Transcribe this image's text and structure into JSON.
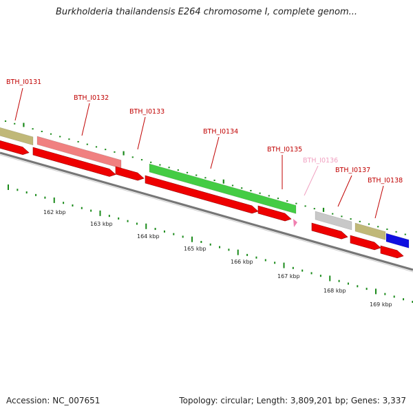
{
  "title": "Burkholderia thailandensis E264 chromosome I, complete genom...",
  "footer": {
    "accession": "Accession: NC_007651",
    "summary": "Topology: circular; Length: 3,809,201 bp; Genes: 3,337"
  },
  "genes": [
    {
      "label": "BTH_I0131",
      "color": "#c00000"
    },
    {
      "label": "BTH_I0132",
      "color": "#c00000"
    },
    {
      "label": "BTH_I0133",
      "color": "#c00000"
    },
    {
      "label": "BTH_I0134",
      "color": "#c00000"
    },
    {
      "label": "BTH_I0135",
      "color": "#c00000"
    },
    {
      "label": "BTH_I0136",
      "color": "#f0a0c0"
    },
    {
      "label": "BTH_I0137",
      "color": "#c00000"
    },
    {
      "label": "BTH_I0138",
      "color": "#c00000"
    }
  ],
  "kbp_labels": [
    "162 kbp",
    "163 kbp",
    "164 kbp",
    "165 kbp",
    "166 kbp",
    "167 kbp",
    "168 kbp",
    "169 kbp"
  ],
  "colors": {
    "backbone": "#777777",
    "cds": "#ee0000",
    "ticks": "#1a8a1a",
    "feature_olive": "#c0b878",
    "feature_pink": "#f08080",
    "feature_green": "#44cc44",
    "feature_gray": "#c8c8c8",
    "feature_blue": "#1010e0",
    "feature_small_pink": "#f080b0"
  }
}
